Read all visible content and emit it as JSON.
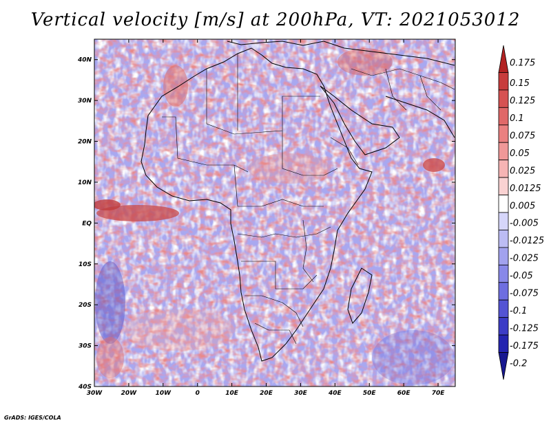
{
  "title": "Vertical velocity [m/s] at 200hPa, VT: 2021053012",
  "credit": "GrADS: IGES/COLA",
  "map": {
    "lon_labels": [
      "30W",
      "20W",
      "10W",
      "0",
      "10E",
      "20E",
      "30E",
      "40E",
      "50E",
      "60E",
      "70E"
    ],
    "lat_labels": [
      "40N",
      "30N",
      "20N",
      "10N",
      "EQ",
      "10S",
      "20S",
      "30S",
      "40S"
    ],
    "lon_range": [
      -30,
      75
    ],
    "lat_range": [
      -40,
      45
    ]
  },
  "colorbar": {
    "labels": [
      "0.175",
      "0.15",
      "0.125",
      "0.1",
      "0.075",
      "0.05",
      "0.025",
      "0.0125",
      "0.005",
      "-0.005",
      "-0.0125",
      "-0.025",
      "-0.05",
      "-0.075",
      "-0.1",
      "-0.125",
      "-0.175",
      "-0.2"
    ],
    "colors": [
      "#b22222",
      "#c83c3c",
      "#d65252",
      "#e06868",
      "#ea8080",
      "#f09898",
      "#f6b4b4",
      "#fad2d2",
      "#ffffff",
      "#d6d6fa",
      "#bcbcf4",
      "#a2a2ee",
      "#8888e8",
      "#6e6ee0",
      "#5454d4",
      "#3c3cc6",
      "#2424b0",
      "#181890"
    ]
  }
}
